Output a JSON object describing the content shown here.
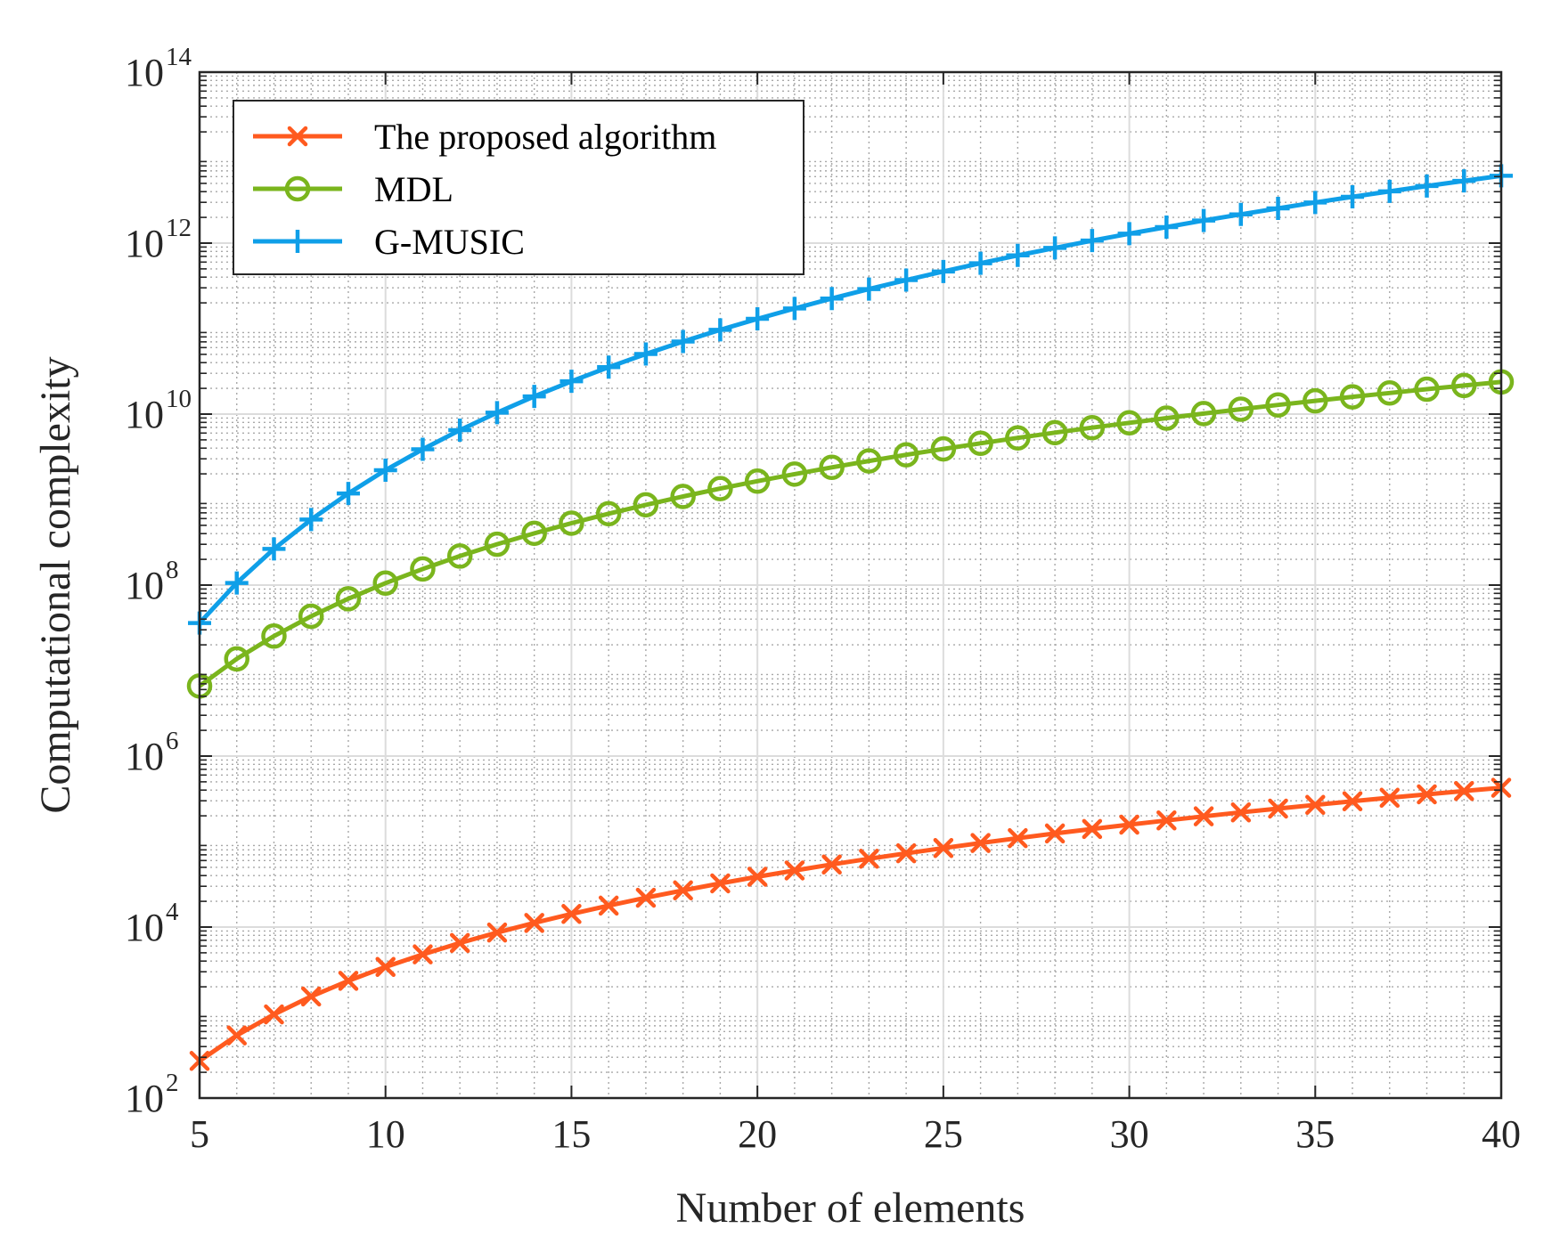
{
  "chart_data": {
    "type": "line",
    "xlabel": "Number of elements",
    "ylabel": "Computational complexity",
    "yscale": "log",
    "xlim": [
      5,
      40
    ],
    "ylim": [
      100,
      100000000000000
    ],
    "x_ticks": [
      {
        "value": 5,
        "label": "5"
      },
      {
        "value": 10,
        "label": "10"
      },
      {
        "value": 15,
        "label": "15"
      },
      {
        "value": 20,
        "label": "20"
      },
      {
        "value": 25,
        "label": "25"
      },
      {
        "value": 30,
        "label": "30"
      },
      {
        "value": 35,
        "label": "35"
      },
      {
        "value": 40,
        "label": "40"
      }
    ],
    "y_ticks": [
      {
        "value": 100,
        "base": "10",
        "exp": "2"
      },
      {
        "value": 10000,
        "base": "10",
        "exp": "4"
      },
      {
        "value": 1000000,
        "base": "10",
        "exp": "6"
      },
      {
        "value": 100000000,
        "base": "10",
        "exp": "8"
      },
      {
        "value": 10000000000,
        "base": "10",
        "exp": "10"
      },
      {
        "value": 1000000000000,
        "base": "10",
        "exp": "12"
      },
      {
        "value": 100000000000000,
        "base": "10",
        "exp": "14"
      }
    ],
    "grid": true,
    "minor_grid": true,
    "legend_position": "top-left",
    "x": [
      5,
      6,
      7,
      8,
      9,
      10,
      11,
      12,
      13,
      14,
      15,
      16,
      17,
      18,
      19,
      20,
      21,
      22,
      23,
      24,
      25,
      26,
      27,
      28,
      29,
      30,
      31,
      32,
      33,
      34,
      35,
      36,
      37,
      38,
      39,
      40
    ],
    "series": [
      {
        "name": "The proposed algorithm",
        "color": "#ff5a1f",
        "marker": "x",
        "values": [
          272,
          540,
          951,
          1542,
          2351,
          3420,
          4792,
          6511,
          8624,
          11180,
          14229,
          17824,
          22017,
          26866,
          32425,
          38753,
          45908,
          53950,
          62939,
          72939,
          84014,
          96226,
          109645,
          124338,
          140374,
          157824,
          176756,
          197244,
          219358,
          243170,
          268755,
          296186,
          325536,
          356882,
          390300,
          425868
        ]
      },
      {
        "name": "MDL",
        "color": "#7ab51d",
        "marker": "o",
        "values": [
          6600000,
          13700000,
          25300000,
          43200000,
          69200000,
          105500000,
          154400000,
          218400000,
          300400000,
          403300000,
          530100000,
          684200000,
          869000000,
          1088000000,
          1345000000,
          1644000000,
          1988000000,
          2383000000,
          2833000000,
          3342000000,
          3914000000,
          4556000000,
          5271000000,
          6065000000,
          6944000000,
          7912000000,
          8975000000,
          10140000000,
          11410000000,
          12790000000,
          14290000000,
          15920000000,
          17670000000,
          19560000000,
          21600000000,
          23790000000
        ]
      },
      {
        "name": "G-MUSIC",
        "color": "#0f9fe8",
        "marker": "+",
        "values": [
          36000000,
          106000000,
          265000000,
          585000000,
          1180000000,
          2210000000,
          3880000000,
          6490000000,
          10400000000,
          16100000000,
          24200000000,
          35400000000,
          50500000000,
          70600000000,
          96700000000,
          130000000000,
          172000000000,
          225000000000,
          290000000000,
          370000000000,
          466000000000,
          581000000000,
          718000000000,
          879000000000,
          1070000000000,
          1290000000000,
          1540000000000,
          1840000000000,
          2170000000000,
          2550000000000,
          2990000000000,
          3480000000000,
          4030000000000,
          4650000000000,
          5350000000000,
          6130000000000
        ]
      }
    ]
  }
}
